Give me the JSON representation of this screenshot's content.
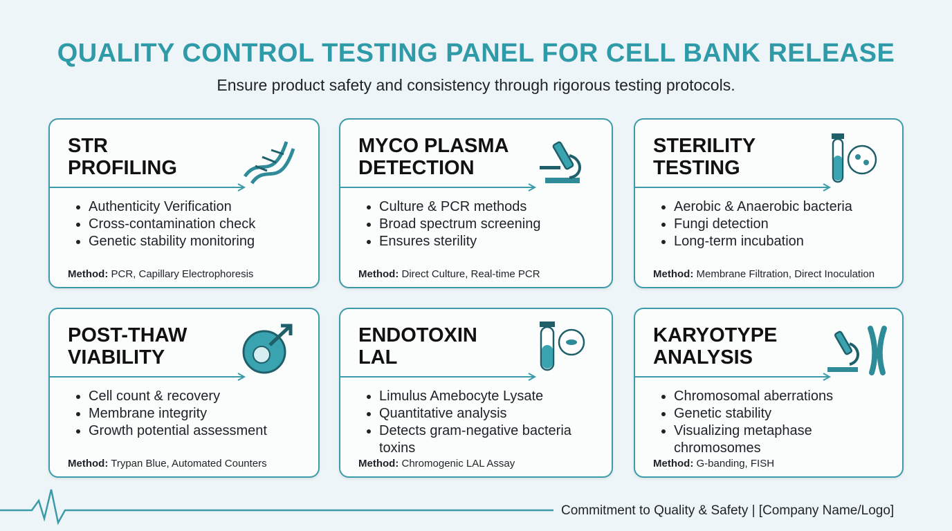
{
  "header": {
    "title": "QUALITY CONTROL TESTING PANEL FOR CELL BANK RELEASE",
    "subtitle": "Ensure product safety and consistency through rigorous testing protocols."
  },
  "cards": [
    {
      "title": [
        "STR",
        "PROFILING"
      ],
      "bullets": [
        "Authenticity Verification",
        "Cross-contamination check",
        "Genetic stability monitoring"
      ],
      "method_label": "Method:",
      "method": "PCR, Capillary Electrophoresis"
    },
    {
      "title": [
        "MYCO PLASMA",
        "DETECTION"
      ],
      "bullets": [
        "Culture & PCR methods",
        "Broad spectrum screening",
        "Ensures sterility"
      ],
      "method_label": "Method:",
      "method": "Direct Culture, Real-time PCR"
    },
    {
      "title": [
        "STERILITY",
        "TESTING"
      ],
      "bullets": [
        "Aerobic & Anaerobic bacteria",
        "Fungi detection",
        "Long-term incubation"
      ],
      "method_label": "Method:",
      "method": "Membrane Filtration, Direct Inoculation"
    },
    {
      "title": [
        "POST-THAW",
        "VIABILITY"
      ],
      "bullets": [
        "Cell count & recovery",
        "Membrane integrity",
        "Growth potential assessment"
      ],
      "method_label": "Method:",
      "method": "Trypan Blue, Automated Counters"
    },
    {
      "title": [
        "ENDOTOXIN",
        "LAL"
      ],
      "bullets": [
        "Limulus Amebocyte Lysate",
        "Quantitative analysis",
        "Detects gram-negative bacteria toxins"
      ],
      "method_label": "Method:",
      "method": "Chromogenic LAL Assay"
    },
    {
      "title": [
        "KARYOTYPE",
        "ANALYSIS"
      ],
      "bullets": [
        "Chromosomal aberrations",
        "Genetic stability",
        "Visualizing metaphase chromosomes"
      ],
      "method_label": "Method:",
      "method": "G-banding, FISH"
    }
  ],
  "footer": {
    "text": "Commitment to Quality & Safety | [Company Name/Logo]"
  }
}
